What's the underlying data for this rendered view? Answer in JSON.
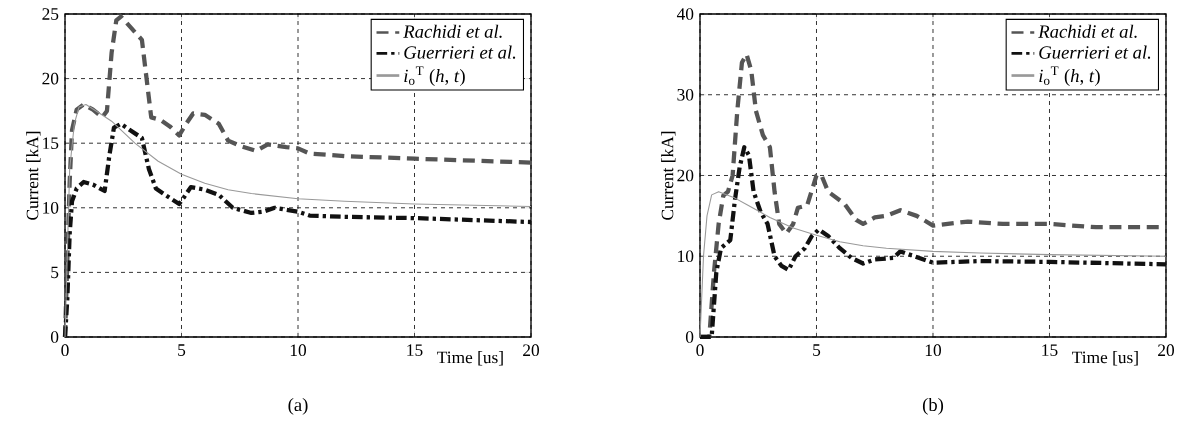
{
  "chart_data": [
    {
      "type": "line",
      "xlabel": "Time [us]",
      "ylabel": "Current [kA]",
      "annotations": [
        "(a)"
      ],
      "xlim": [
        0,
        20
      ],
      "ylim": [
        0,
        25
      ],
      "xticks": [
        0,
        5,
        10,
        15,
        20
      ],
      "yticks": [
        0,
        5,
        10,
        15,
        20,
        25
      ],
      "grid": true,
      "legend": "top right",
      "series": [
        {
          "name": "*Rachidi et al.*",
          "color": "#555555",
          "line_style": "dashed",
          "x": [
            0,
            0.1,
            0.2,
            0.3,
            0.5,
            0.8,
            1.2,
            1.6,
            1.8,
            2.0,
            2.2,
            2.4,
            2.8,
            3.3,
            3.5,
            3.7,
            4.1,
            4.5,
            4.9,
            5.2,
            5.5,
            6,
            6.6,
            7,
            7.5,
            8.2,
            8.7,
            9.5,
            10,
            10.5,
            12,
            15,
            20
          ],
          "values": [
            0,
            6,
            12,
            16,
            17.6,
            18,
            17.6,
            17,
            17.5,
            22,
            24.5,
            24.8,
            24,
            23,
            20,
            17,
            16.8,
            16.3,
            15.6,
            16.5,
            17.3,
            17.2,
            16.5,
            15.2,
            14.8,
            14.4,
            14.9,
            14.7,
            14.6,
            14.2,
            14,
            13.8,
            13.5
          ]
        },
        {
          "name": "*Guerrieri et al.*",
          "color": "#111111",
          "line_style": "dashdot",
          "x": [
            0,
            0.1,
            0.2,
            0.3,
            0.5,
            0.8,
            1.2,
            1.7,
            1.9,
            2.1,
            2.4,
            2.8,
            3.3,
            3.6,
            3.9,
            4.3,
            4.9,
            5.1,
            5.4,
            6,
            6.6,
            7.2,
            8,
            8.5,
            9,
            10,
            10.5,
            12,
            15,
            20
          ],
          "values": [
            0,
            3,
            8,
            10.5,
            11.5,
            12,
            11.8,
            11.3,
            14,
            16.2,
            16.5,
            16,
            15.4,
            13,
            11.5,
            11,
            10.3,
            10.8,
            11.6,
            11.4,
            11,
            10,
            9.6,
            9.7,
            10,
            9.7,
            9.4,
            9.3,
            9.2,
            8.9
          ]
        },
        {
          "name": "*i*$_{o}$$^{T}$ (*h*, *t*)",
          "color": "#999999",
          "line_style": "solid",
          "x": [
            0,
            0.2,
            0.4,
            0.6,
            0.9,
            1.5,
            2,
            3,
            4,
            5,
            6,
            7,
            8,
            10,
            12,
            15,
            20
          ],
          "values": [
            0,
            13,
            16.5,
            17.8,
            18,
            17.3,
            16.7,
            15,
            13.6,
            12.6,
            11.9,
            11.4,
            11.1,
            10.7,
            10.5,
            10.3,
            10.1
          ]
        }
      ]
    },
    {
      "type": "line",
      "xlabel": "Time [us]",
      "ylabel": "Current [kA]",
      "annotations": [
        "(b)"
      ],
      "xlim": [
        0,
        20
      ],
      "ylim": [
        0,
        40
      ],
      "xticks": [
        0,
        5,
        10,
        15,
        20
      ],
      "yticks": [
        0,
        10,
        20,
        30,
        40
      ],
      "grid": true,
      "legend": "top right",
      "series": [
        {
          "name": "*Rachidi et al.*",
          "color": "#555555",
          "line_style": "dashed",
          "x": [
            0,
            0.4,
            0.6,
            0.8,
            1.0,
            1.2,
            1.4,
            1.6,
            1.8,
            2.0,
            2.2,
            2.4,
            2.7,
            3.0,
            3.2,
            3.4,
            3.7,
            4.0,
            4.2,
            4.6,
            5.0,
            5.2,
            5.5,
            6.2,
            6.7,
            7.0,
            7.5,
            8.0,
            8.6,
            9.3,
            10,
            11.5,
            13,
            15,
            17,
            20
          ],
          "values": [
            0,
            0,
            8,
            14,
            17.5,
            18,
            20,
            28,
            34,
            35,
            33,
            28,
            25,
            23.5,
            18,
            14,
            12.8,
            14,
            16,
            16.3,
            20,
            20.1,
            18,
            16.5,
            14.5,
            14,
            14.8,
            15,
            15.7,
            15,
            13.8,
            14.3,
            14,
            14,
            13.6,
            13.6
          ]
        },
        {
          "name": "*Guerrieri et al.*",
          "color": "#111111",
          "line_style": "dashdot",
          "x": [
            0,
            0.5,
            0.7,
            0.9,
            1.1,
            1.3,
            1.5,
            1.7,
            1.9,
            2.1,
            2.3,
            2.6,
            2.9,
            3.2,
            3.5,
            3.8,
            4.1,
            4.5,
            4.8,
            5.1,
            5.5,
            6.0,
            6.5,
            7,
            7.5,
            8.3,
            8.6,
            9.2,
            10,
            12,
            15,
            20
          ],
          "values": [
            0,
            0,
            8,
            11,
            11.5,
            12,
            17,
            21,
            23.5,
            22.5,
            18,
            15.5,
            14,
            10,
            8.8,
            8.3,
            10,
            11,
            12.5,
            13.3,
            12.5,
            11,
            9.8,
            9.1,
            9.6,
            9.8,
            10.6,
            10,
            9.2,
            9.4,
            9.3,
            9.0
          ]
        },
        {
          "name": "*i*$_{o}$$^{T}$ (*h*, *t*)",
          "color": "#999999",
          "line_style": "solid",
          "x": [
            0,
            0.15,
            0.3,
            0.5,
            0.8,
            1.5,
            2,
            3,
            4,
            5,
            6,
            7,
            8,
            10,
            12,
            15,
            20
          ],
          "values": [
            0,
            10,
            15,
            17.6,
            18,
            17.2,
            16.4,
            14.8,
            13.5,
            12.6,
            11.8,
            11.3,
            11,
            10.6,
            10.4,
            10.2,
            10.0
          ]
        }
      ]
    }
  ]
}
